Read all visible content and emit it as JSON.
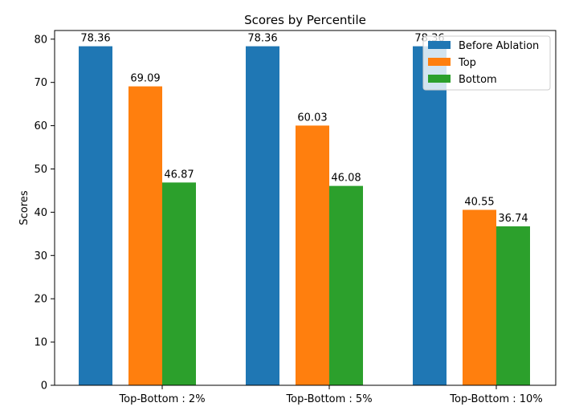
{
  "chart_data": {
    "type": "bar",
    "title": "Scores by Percentile",
    "ylabel": "Scores",
    "xlabel": "",
    "categories": [
      "Top-Bottom : 2%",
      "Top-Bottom : 5%",
      "Top-Bottom : 10%"
    ],
    "series": [
      {
        "name": "Before Ablation",
        "color": "#1f77b4",
        "values": [
          78.36,
          78.36,
          78.36
        ],
        "labels": [
          "78.36",
          "78.36",
          "78.36"
        ]
      },
      {
        "name": "Top",
        "color": "#ff7f0e",
        "values": [
          69.09,
          60.03,
          40.55
        ],
        "labels": [
          "69.09",
          "60.03",
          "40.55"
        ]
      },
      {
        "name": "Bottom",
        "color": "#2ca02c",
        "values": [
          46.87,
          46.08,
          36.74
        ],
        "labels": [
          "46.87",
          "46.08",
          "36.74"
        ]
      }
    ],
    "ylim": [
      0,
      82
    ],
    "yticks": [
      "0",
      "10",
      "20",
      "30",
      "40",
      "50",
      "60",
      "70",
      "80"
    ],
    "grid": false,
    "legend_position": "top-right"
  }
}
